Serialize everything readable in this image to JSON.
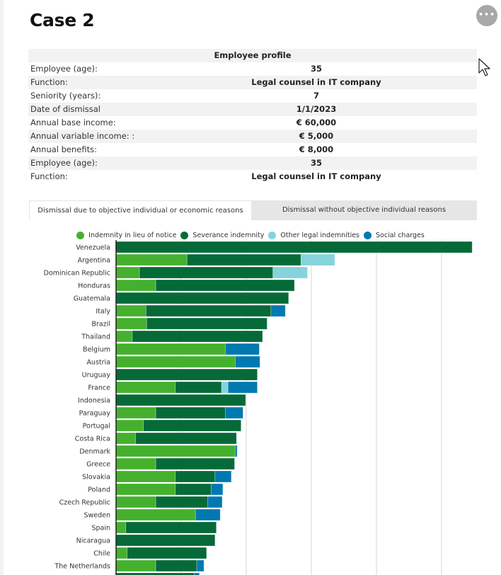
{
  "page": {
    "title": "Case 2",
    "more_button_label": "•••"
  },
  "profile": {
    "header": "Employee profile",
    "rows": [
      {
        "label": "Employee (age):",
        "value": "35"
      },
      {
        "label": "Function:",
        "value": "Legal counsel in IT company"
      },
      {
        "label": "Seniority (years):",
        "value": "7"
      },
      {
        "label": "Date of dismissal",
        "value": "1/1/2023"
      },
      {
        "label": "Annual base income:",
        "value": "€ 60,000"
      },
      {
        "label": "Annual variable income: :",
        "value": "€ 5,000"
      },
      {
        "label": "Annual benefits:",
        "value": "€ 8,000"
      },
      {
        "label": "Employee (age):",
        "value": "35"
      },
      {
        "label": "Function:",
        "value": "Legal counsel in IT company"
      }
    ]
  },
  "tabs": [
    {
      "label": "Dismissal due to objective individual or economic reasons",
      "active": true
    },
    {
      "label": "Dismissal without objective individual reasons",
      "active": false
    }
  ],
  "chart_data": {
    "type": "bar",
    "orientation": "horizontal",
    "stacked": true,
    "title": "",
    "xlabel": "",
    "ylabel": "",
    "value_units": "relative (one gridline interval = 1; axis tick labels not shown)",
    "xlim": [
      0,
      5.5
    ],
    "grid": true,
    "legend_position": "top-center",
    "categories": [
      "Venezuela",
      "Argentina",
      "Dominican Republic",
      "Honduras",
      "Guatemala",
      "Italy",
      "Brazil",
      "Thailand",
      "Belgium",
      "Austria",
      "Uruguay",
      "France",
      "Indonesia",
      "Paraguay",
      "Portugal",
      "Costa Rica",
      "Denmark",
      "Greece",
      "Slovakia",
      "Poland",
      "Czech Republic",
      "Sweden",
      "Spain",
      "Nicaragua",
      "Chile",
      "The Netherlands",
      ""
    ],
    "series": [
      {
        "name": "Indemnity in lieu of notice",
        "color": "#45b02e",
        "values": [
          0,
          1.09,
          0.36,
          0.61,
          0,
          0.46,
          0.47,
          0.25,
          1.68,
          1.83,
          0,
          0.91,
          0,
          0.61,
          0.42,
          0.3,
          1.83,
          0.61,
          0.91,
          0.91,
          0.61,
          1.22,
          0.15,
          0,
          0.17,
          0.61,
          0
        ]
      },
      {
        "name": "Severance indemnity",
        "color": "#066a38",
        "values": [
          5.47,
          1.75,
          2.05,
          2.13,
          2.65,
          1.92,
          1.85,
          2.0,
          0,
          0,
          2.17,
          0.71,
          1.99,
          1.07,
          1.5,
          1.55,
          0,
          1.21,
          0.61,
          0.55,
          0.8,
          0,
          1.39,
          1.52,
          1.22,
          0.63,
          1.2
        ]
      },
      {
        "name": "Other legal indemnities",
        "color": "#85d3dc",
        "values": [
          0,
          0.52,
          0.53,
          0,
          0,
          0,
          0,
          0,
          0,
          0,
          0,
          0.1,
          0,
          0,
          0,
          0,
          0,
          0,
          0,
          0,
          0,
          0,
          0,
          0,
          0,
          0,
          0
        ]
      },
      {
        "name": "Social charges",
        "color": "#0079b0",
        "values": [
          0,
          0,
          0,
          0,
          0,
          0.22,
          0,
          0,
          0.52,
          0.38,
          0,
          0.45,
          0,
          0.27,
          0,
          0,
          0.03,
          0,
          0.25,
          0.18,
          0.22,
          0.38,
          0,
          0,
          0,
          0.11,
          0.08
        ]
      }
    ]
  }
}
